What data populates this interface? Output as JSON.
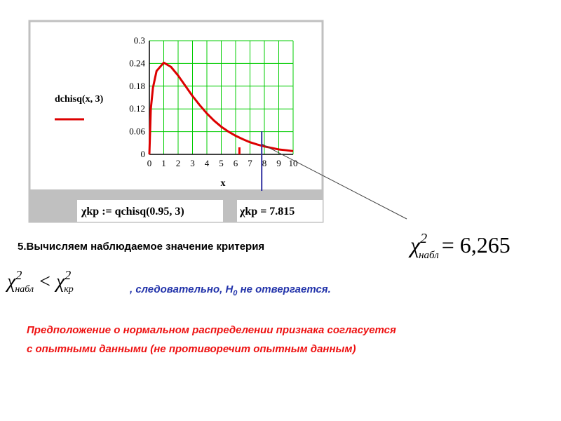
{
  "chart_data": {
    "type": "line",
    "x_label": "x",
    "x": [
      0,
      0.1,
      0.25,
      0.5,
      1,
      1.5,
      2,
      2.5,
      3,
      3.5,
      4,
      4.5,
      5,
      5.5,
      6,
      6.5,
      7,
      7.5,
      8,
      8.5,
      9,
      9.5,
      10
    ],
    "series": [
      {
        "name": "dchisq(x, 3)",
        "color": "#dd0000",
        "values": [
          0,
          0.12,
          0.176,
          0.22,
          0.242,
          0.231,
          0.208,
          0.181,
          0.154,
          0.13,
          0.108,
          0.089,
          0.073,
          0.06,
          0.049,
          0.04,
          0.032,
          0.026,
          0.021,
          0.017,
          0.013,
          0.011,
          0.0085
        ]
      }
    ],
    "xlim": [
      0,
      10
    ],
    "xticks": [
      0,
      1,
      2,
      3,
      4,
      5,
      6,
      7,
      8,
      9,
      10
    ],
    "ylim": [
      0,
      0.3
    ],
    "yticks": [
      0,
      0.06,
      0.12,
      0.18,
      0.24,
      0.3
    ],
    "grid": true,
    "grid_color": "#00cc00",
    "markers": [
      {
        "x": 6.265,
        "color": "#ee0000"
      },
      {
        "x": 7.815,
        "color": "#3030a0"
      }
    ]
  },
  "slide": {
    "formula_def": "χkp := qchisq(0.95, 3)",
    "formula_result": "χkp = 7.815",
    "step": "5.Вычисляем наблюдаемое значение критерия",
    "chi_obs": {
      "symbol": "χ",
      "power": "2",
      "sub": "набл",
      "rhs": "= 6,265"
    },
    "comparison": {
      "symbol": "χ",
      "power": "2",
      "sub_left": "набл",
      "op": "<",
      "sub_right": "кр"
    },
    "conclusion": {
      "pre": ", следовательно, ",
      "h": "H",
      "h_sub": "0",
      "post": " не отвергается."
    },
    "note": [
      "Предположение о нормальном распределении признака согласуется",
      "с опытными данными (не противоречит опытным данным)"
    ]
  }
}
